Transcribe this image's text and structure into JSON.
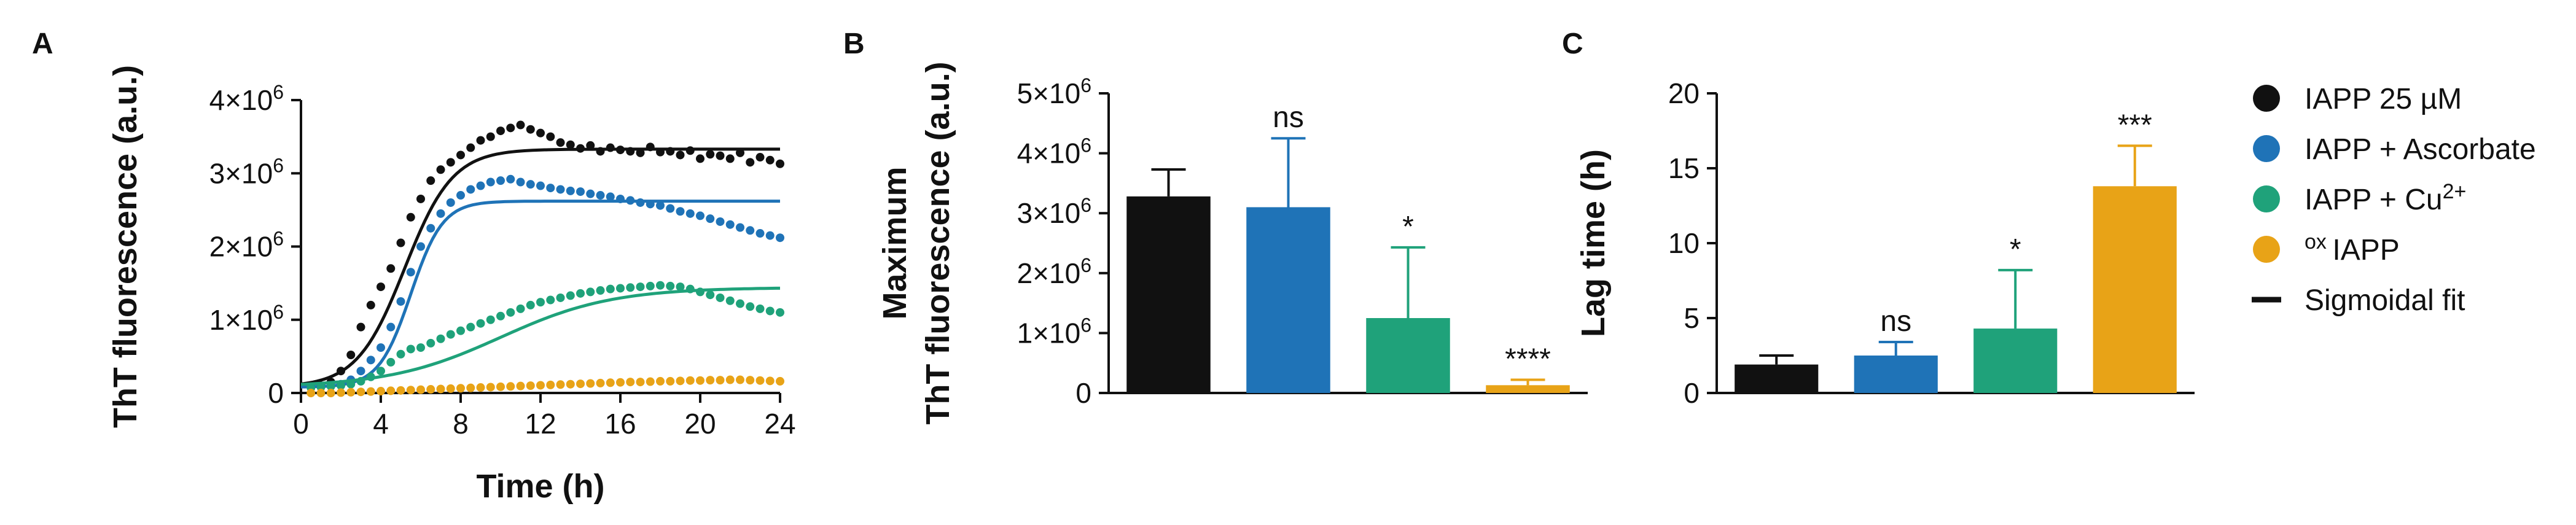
{
  "colors": {
    "iapp": "#111111",
    "ascorbate": "#1f73b7",
    "cu": "#1fa27a",
    "ox": "#e8a317"
  },
  "legend": {
    "items": [
      {
        "label": "IAPP 25 µM",
        "color": "#111111",
        "symbol": "dot"
      },
      {
        "label": "IAPP + Ascorbate",
        "color": "#1f73b7",
        "symbol": "dot"
      },
      {
        "label": "IAPP + Cu",
        "sup": "2+",
        "color": "#1fa27a",
        "symbol": "dot"
      },
      {
        "label": "IAPP",
        "pre_sup": "ox",
        "color": "#e8a317",
        "symbol": "dot"
      },
      {
        "label": "Sigmoidal fit",
        "color": "#111111",
        "symbol": "line"
      }
    ]
  },
  "chart_data": [
    {
      "panel": "A",
      "type": "scatter",
      "xlabel": "Time (h)",
      "ylabel": "ThT fluorescence (a.u.)",
      "xlim": [
        0,
        24
      ],
      "ylim": [
        0,
        4000000
      ],
      "xticks": [
        "0",
        "4",
        "8",
        "12",
        "16",
        "20",
        "24"
      ],
      "yticks": [
        {
          "main": "0",
          "exp": ""
        },
        {
          "main": "1×10",
          "exp": "6"
        },
        {
          "main": "2×10",
          "exp": "6"
        },
        {
          "main": "3×10",
          "exp": "6"
        },
        {
          "main": "4×10",
          "exp": "6"
        }
      ],
      "series": [
        {
          "name": "IAPP 25 µM",
          "color": "#111111",
          "plateau": 3330000,
          "half_time": 5.2,
          "slope_tau": 1.2,
          "baseline": 80000,
          "points_x": [
            0.5,
            1,
            1.5,
            2,
            2.5,
            3,
            3.5,
            4,
            4.5,
            5,
            5.5,
            6,
            6.5,
            7,
            7.5,
            8,
            8.5,
            9,
            9.5,
            10,
            10.5,
            11,
            11.5,
            12,
            12.5,
            13,
            13.5,
            14,
            14.5,
            15,
            15.5,
            16,
            16.5,
            17,
            17.5,
            18,
            18.5,
            19,
            19.5,
            20,
            20.5,
            21,
            21.5,
            22,
            22.5,
            23,
            23.5,
            24
          ],
          "points_y": [
            90000,
            100000,
            150000,
            300000,
            520000,
            900000,
            1200000,
            1450000,
            1700000,
            2050000,
            2400000,
            2650000,
            2900000,
            3050000,
            3150000,
            3250000,
            3350000,
            3450000,
            3500000,
            3580000,
            3620000,
            3660000,
            3600000,
            3550000,
            3500000,
            3420000,
            3390000,
            3340000,
            3380000,
            3300000,
            3350000,
            3320000,
            3300000,
            3280000,
            3360000,
            3290000,
            3300000,
            3250000,
            3310000,
            3200000,
            3260000,
            3240000,
            3200000,
            3280000,
            3150000,
            3220000,
            3180000,
            3130000
          ]
        },
        {
          "name": "IAPP + Ascorbate",
          "color": "#1f73b7",
          "plateau": 2620000,
          "half_time": 5.5,
          "slope_tau": 0.8,
          "baseline": 80000,
          "points_x": [
            0.5,
            1,
            1.5,
            2,
            2.5,
            3,
            3.5,
            4,
            4.5,
            5,
            5.5,
            6,
            6.5,
            7,
            7.5,
            8,
            8.5,
            9,
            9.5,
            10,
            10.5,
            11,
            11.5,
            12,
            12.5,
            13,
            13.5,
            14,
            14.5,
            15,
            15.5,
            16,
            16.5,
            17,
            17.5,
            18,
            18.5,
            19,
            19.5,
            20,
            20.5,
            21,
            21.5,
            22,
            22.5,
            23,
            23.5,
            24
          ],
          "points_y": [
            80000,
            90000,
            100000,
            120000,
            180000,
            300000,
            450000,
            620000,
            900000,
            1250000,
            1650000,
            2000000,
            2250000,
            2450000,
            2600000,
            2700000,
            2780000,
            2830000,
            2880000,
            2900000,
            2920000,
            2880000,
            2850000,
            2830000,
            2800000,
            2780000,
            2760000,
            2750000,
            2720000,
            2700000,
            2680000,
            2650000,
            2630000,
            2600000,
            2580000,
            2560000,
            2520000,
            2480000,
            2450000,
            2420000,
            2380000,
            2340000,
            2300000,
            2260000,
            2220000,
            2180000,
            2150000,
            2120000
          ]
        },
        {
          "name": "IAPP + Cu2+",
          "color": "#1fa27a",
          "plateau": 1440000,
          "half_time": 10.0,
          "slope_tau": 2.8,
          "baseline": 80000,
          "points_x": [
            0.5,
            1,
            1.5,
            2,
            2.5,
            3,
            3.5,
            4,
            4.5,
            5,
            5.5,
            6,
            6.5,
            7,
            7.5,
            8,
            8.5,
            9,
            9.5,
            10,
            10.5,
            11,
            11.5,
            12,
            12.5,
            13,
            13.5,
            14,
            14.5,
            15,
            15.5,
            16,
            16.5,
            17,
            17.5,
            18,
            18.5,
            19,
            19.5,
            20,
            20.5,
            21,
            21.5,
            22,
            22.5,
            23,
            23.5,
            24
          ],
          "points_y": [
            70000,
            80000,
            90000,
            100000,
            120000,
            160000,
            220000,
            300000,
            420000,
            530000,
            600000,
            620000,
            680000,
            740000,
            800000,
            850000,
            900000,
            950000,
            1000000,
            1050000,
            1100000,
            1150000,
            1200000,
            1240000,
            1270000,
            1300000,
            1330000,
            1360000,
            1380000,
            1400000,
            1420000,
            1430000,
            1440000,
            1450000,
            1460000,
            1470000,
            1460000,
            1450000,
            1420000,
            1380000,
            1340000,
            1300000,
            1260000,
            1220000,
            1180000,
            1150000,
            1120000,
            1100000
          ]
        },
        {
          "name": "oxIAPP",
          "color": "#e8a317",
          "points_x": [
            0.5,
            1,
            1.5,
            2,
            2.5,
            3,
            3.5,
            4,
            4.5,
            5,
            5.5,
            6,
            6.5,
            7,
            7.5,
            8,
            8.5,
            9,
            9.5,
            10,
            10.5,
            11,
            11.5,
            12,
            12.5,
            13,
            13.5,
            14,
            14.5,
            15,
            15.5,
            16,
            16.5,
            17,
            17.5,
            18,
            18.5,
            19,
            19.5,
            20,
            20.5,
            21,
            21.5,
            22,
            22.5,
            23,
            23.5,
            24
          ],
          "points_y": [
            0,
            0,
            0,
            5000,
            10000,
            15000,
            20000,
            25000,
            30000,
            35000,
            40000,
            45000,
            50000,
            55000,
            60000,
            65000,
            70000,
            75000,
            80000,
            85000,
            90000,
            95000,
            100000,
            105000,
            110000,
            115000,
            120000,
            125000,
            130000,
            135000,
            140000,
            145000,
            150000,
            150000,
            155000,
            160000,
            160000,
            165000,
            170000,
            170000,
            175000,
            175000,
            180000,
            180000,
            175000,
            170000,
            165000,
            160000
          ]
        }
      ]
    },
    {
      "panel": "B",
      "type": "bar",
      "ylabel": "Maximum",
      "ylabel2": "ThT fluorescence (a.u.)",
      "ylim": [
        0,
        5000000
      ],
      "yticks": [
        {
          "main": "0",
          "exp": ""
        },
        {
          "main": "1×10",
          "exp": "6"
        },
        {
          "main": "2×10",
          "exp": "6"
        },
        {
          "main": "3×10",
          "exp": "6"
        },
        {
          "main": "4×10",
          "exp": "6"
        },
        {
          "main": "5×10",
          "exp": "6"
        }
      ],
      "categories": [
        "IAPP 25 µM",
        "IAPP + Ascorbate",
        "IAPP + Cu2+",
        "oxIAPP"
      ],
      "values": [
        3280000,
        3100000,
        1250000,
        130000
      ],
      "errors": [
        450000,
        1150000,
        1180000,
        90000
      ],
      "significance": [
        "",
        "ns",
        "*",
        "****"
      ],
      "colors": [
        "#111111",
        "#1f73b7",
        "#1fa27a",
        "#e8a317"
      ]
    },
    {
      "panel": "C",
      "type": "bar",
      "ylabel": "Lag time (h)",
      "ylim": [
        0,
        20
      ],
      "yticks": [
        {
          "main": "0",
          "exp": ""
        },
        {
          "main": "5",
          "exp": ""
        },
        {
          "main": "10",
          "exp": ""
        },
        {
          "main": "15",
          "exp": ""
        },
        {
          "main": "20",
          "exp": ""
        }
      ],
      "categories": [
        "IAPP 25 µM",
        "IAPP + Ascorbate",
        "IAPP + Cu2+",
        "oxIAPP"
      ],
      "values": [
        1.9,
        2.5,
        4.3,
        13.8
      ],
      "errors": [
        0.6,
        0.9,
        3.9,
        2.7
      ],
      "significance": [
        "",
        "ns",
        "*",
        "***"
      ],
      "colors": [
        "#111111",
        "#1f73b7",
        "#1fa27a",
        "#e8a317"
      ]
    }
  ]
}
